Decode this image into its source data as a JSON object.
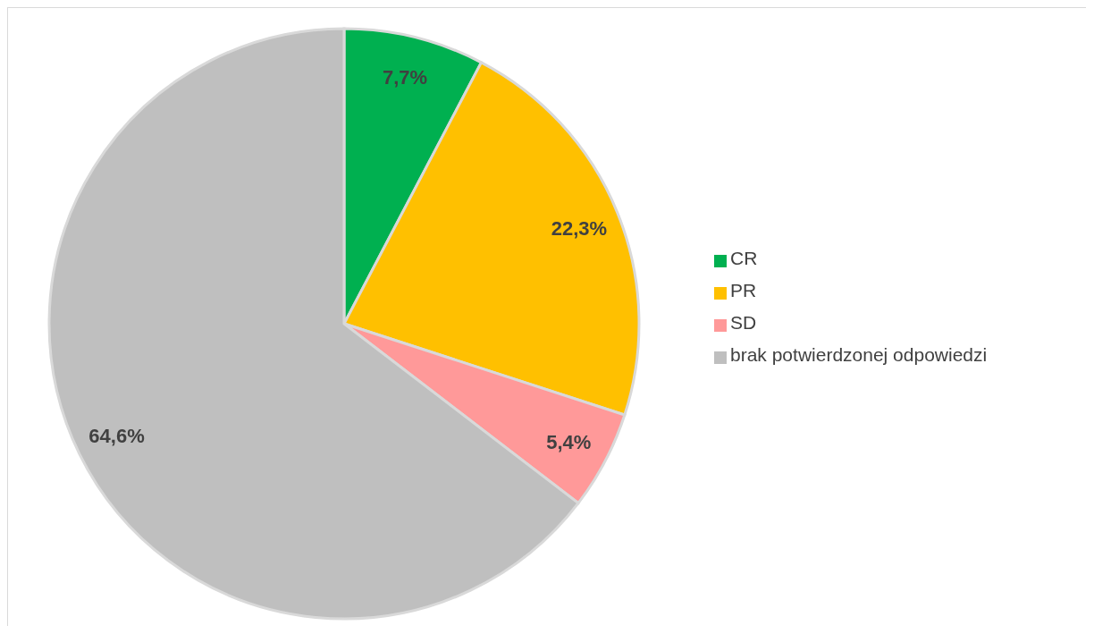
{
  "chart_data": {
    "type": "pie",
    "categories": [
      "CR",
      "PR",
      "SD",
      "brak potwierdzonej odpowiedzi"
    ],
    "values": [
      7.7,
      22.3,
      5.4,
      64.6
    ],
    "colors": [
      "#00b050",
      "#ffc000",
      "#ff9999",
      "#bfbfbf"
    ],
    "value_labels": [
      "7,7%",
      "22,3%",
      "5,4%",
      "64,6%"
    ],
    "legend": "right"
  }
}
